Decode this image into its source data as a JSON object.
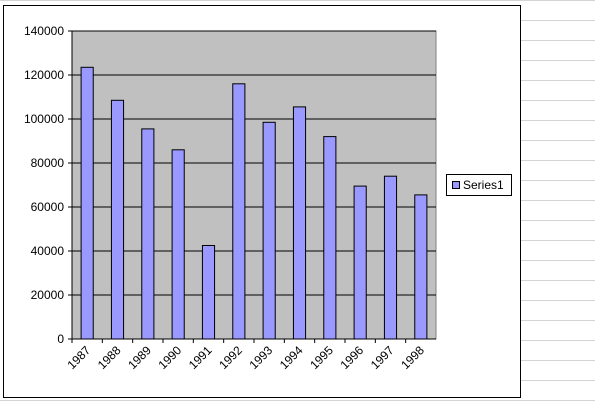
{
  "chart_data": {
    "type": "bar",
    "categories": [
      "1987",
      "1988",
      "1989",
      "1990",
      "1991",
      "1992",
      "1993",
      "1994",
      "1995",
      "1996",
      "1997",
      "1998"
    ],
    "series": [
      {
        "name": "Series1",
        "color": "#9999ff",
        "values": [
          123500,
          108500,
          95500,
          86000,
          42500,
          116000,
          98500,
          105500,
          92000,
          69500,
          74000,
          65500
        ]
      }
    ],
    "ylim": [
      0,
      140000
    ],
    "yticks": [
      0,
      20000,
      40000,
      60000,
      80000,
      100000,
      120000,
      140000
    ],
    "grid": true,
    "legend": "right"
  }
}
